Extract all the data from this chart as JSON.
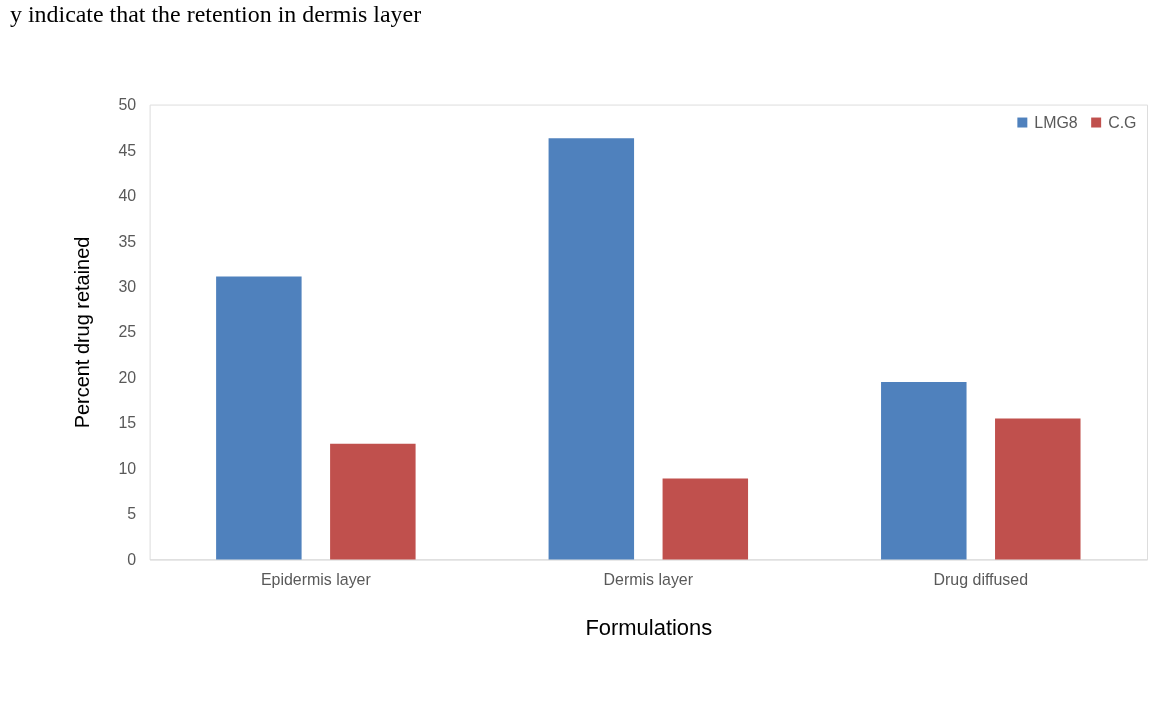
{
  "chart_data": {
    "type": "bar",
    "xlabel": "Formulations",
    "ylabel": "Percent drug retained",
    "categories": [
      "Epidermis layer",
      "Dermis layer",
      "Drug diffused"
    ],
    "series": [
      {
        "name": "LMG8",
        "color": "#4f81bd",
        "values": [
          31.1,
          46.3,
          19.5
        ]
      },
      {
        "name": "C.G",
        "color": "#c0504d",
        "values": [
          12.7,
          8.9,
          15.5
        ]
      }
    ],
    "ylim": [
      0,
      50
    ],
    "yticks": [
      0,
      5,
      10,
      15,
      20,
      25,
      30,
      35,
      40,
      45,
      50
    ],
    "grid": false,
    "legend": "top right",
    "annotations": [
      "y indicate that the retention in dermis layer"
    ]
  }
}
